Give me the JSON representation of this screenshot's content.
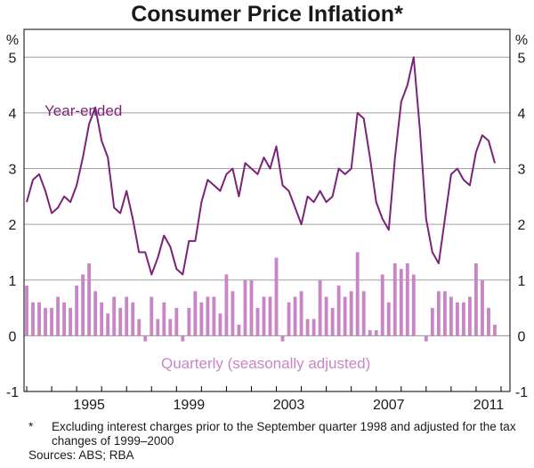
{
  "colors": {
    "line": "#7a2378",
    "bars": "#c986c6",
    "grid": "#a0a0a0",
    "frame": "#000000",
    "text": "#1a1a1a"
  },
  "notes": {
    "asterisk": "*",
    "footnote": "Excluding interest charges prior to the September quarter 1998 and adjusted for the tax changes of 1999–2000",
    "sources": "Sources: ABS; RBA"
  },
  "chart_data": {
    "type": "bar+line",
    "title": "Consumer Price Inflation*",
    "y_unit_left": "%",
    "y_unit_right": "%",
    "ylim": [
      -1,
      5.5
    ],
    "yticks": [
      5,
      4,
      3,
      2,
      1,
      0,
      -1
    ],
    "xlim": [
      1993.0,
      2012.25
    ],
    "xticks": [
      1995,
      1999,
      2003,
      2007,
      2011
    ],
    "grid": true,
    "series": [
      {
        "name": "Year-ended",
        "type": "line",
        "x": [
          1993.0,
          1993.25,
          1993.5,
          1993.75,
          1994.0,
          1994.25,
          1994.5,
          1994.75,
          1995.0,
          1995.25,
          1995.5,
          1995.75,
          1996.0,
          1996.25,
          1996.5,
          1996.75,
          1997.0,
          1997.25,
          1997.5,
          1997.75,
          1998.0,
          1998.25,
          1998.5,
          1998.75,
          1999.0,
          1999.25,
          1999.5,
          1999.75,
          2000.0,
          2000.25,
          2000.5,
          2000.75,
          2001.0,
          2001.25,
          2001.5,
          2001.75,
          2002.0,
          2002.25,
          2002.5,
          2002.75,
          2003.0,
          2003.25,
          2003.5,
          2003.75,
          2004.0,
          2004.25,
          2004.5,
          2004.75,
          2005.0,
          2005.25,
          2005.5,
          2005.75,
          2006.0,
          2006.25,
          2006.5,
          2006.75,
          2007.0,
          2007.25,
          2007.5,
          2007.75,
          2008.0,
          2008.25,
          2008.5,
          2008.75,
          2009.0,
          2009.25,
          2009.5,
          2009.75,
          2010.0,
          2010.25,
          2010.5,
          2010.75,
          2011.0,
          2011.25,
          2011.5,
          2011.75
        ],
        "values": [
          2.4,
          2.8,
          2.9,
          2.6,
          2.2,
          2.3,
          2.5,
          2.4,
          2.7,
          3.2,
          3.8,
          4.1,
          3.5,
          3.2,
          2.3,
          2.2,
          2.6,
          2.1,
          1.5,
          1.5,
          1.1,
          1.4,
          1.8,
          1.6,
          1.2,
          1.1,
          1.7,
          1.7,
          2.4,
          2.8,
          2.7,
          2.6,
          2.9,
          3.0,
          2.5,
          3.1,
          3.0,
          2.9,
          3.2,
          3.0,
          3.4,
          2.7,
          2.6,
          2.3,
          2.0,
          2.5,
          2.4,
          2.6,
          2.4,
          2.5,
          3.0,
          2.9,
          3.0,
          4.0,
          3.9,
          3.2,
          2.4,
          2.1,
          1.9,
          3.2,
          4.2,
          4.5,
          5.0,
          3.7,
          2.1,
          1.5,
          1.3,
          2.1,
          2.9,
          3.0,
          2.8,
          2.7,
          3.3,
          3.6,
          3.5,
          3.1
        ]
      },
      {
        "name": "Quarterly (seasonally adjusted)",
        "type": "bar",
        "x": [
          1993.0,
          1993.25,
          1993.5,
          1993.75,
          1994.0,
          1994.25,
          1994.5,
          1994.75,
          1995.0,
          1995.25,
          1995.5,
          1995.75,
          1996.0,
          1996.25,
          1996.5,
          1996.75,
          1997.0,
          1997.25,
          1997.5,
          1997.75,
          1998.0,
          1998.25,
          1998.5,
          1998.75,
          1999.0,
          1999.25,
          1999.5,
          1999.75,
          2000.0,
          2000.25,
          2000.5,
          2000.75,
          2001.0,
          2001.25,
          2001.5,
          2001.75,
          2002.0,
          2002.25,
          2002.5,
          2002.75,
          2003.0,
          2003.25,
          2003.5,
          2003.75,
          2004.0,
          2004.25,
          2004.5,
          2004.75,
          2005.0,
          2005.25,
          2005.5,
          2005.75,
          2006.0,
          2006.25,
          2006.5,
          2006.75,
          2007.0,
          2007.25,
          2007.5,
          2007.75,
          2008.0,
          2008.25,
          2008.5,
          2008.75,
          2009.0,
          2009.25,
          2009.5,
          2009.75,
          2010.0,
          2010.25,
          2010.5,
          2010.75,
          2011.0,
          2011.25,
          2011.5,
          2011.75
        ],
        "values": [
          0.9,
          0.6,
          0.6,
          0.5,
          0.5,
          0.7,
          0.6,
          0.5,
          0.9,
          1.1,
          1.3,
          0.8,
          0.6,
          0.4,
          0.7,
          0.5,
          0.7,
          0.6,
          0.3,
          -0.1,
          0.7,
          0.3,
          0.6,
          0.3,
          0.5,
          -0.1,
          0.5,
          0.8,
          0.6,
          0.7,
          0.7,
          0.4,
          1.1,
          0.8,
          0.2,
          1.0,
          1.0,
          0.5,
          0.7,
          0.7,
          1.4,
          -0.1,
          0.6,
          0.7,
          0.8,
          0.3,
          0.3,
          1.0,
          0.7,
          0.5,
          0.9,
          0.7,
          0.8,
          1.5,
          0.8,
          0.1,
          0.1,
          1.1,
          0.6,
          1.3,
          1.2,
          1.3,
          1.1,
          0.0,
          -0.1,
          0.5,
          0.8,
          0.8,
          0.7,
          0.6,
          0.6,
          0.7,
          1.3,
          1.0,
          0.5,
          0.2
        ]
      }
    ],
    "annotations": [
      "Year-ended",
      "Quarterly (seasonally adjusted)"
    ]
  }
}
